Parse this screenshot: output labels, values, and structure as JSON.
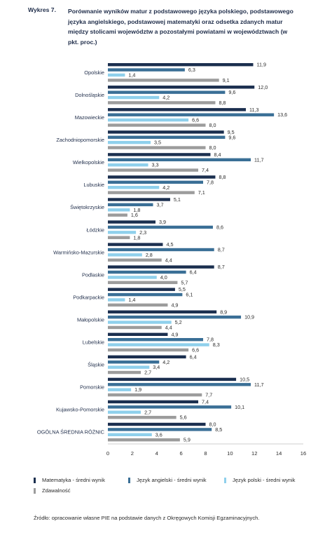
{
  "figure_label": "Wykres 7.",
  "title": "Porównanie wyników matur z podstawowego języka polskiego, podstawowego języka angielskiego, podstawowej matematyki oraz odsetka zdanych matur między stolicami województw a pozostałymi powiatami w województwach (w pkt. proc.)",
  "source": "Źródło: opracowanie własne PIE na podstawie danych z Okręgowych Komisji Egzaminacyjnych.",
  "colors": {
    "matematyka": "#1b2f4f",
    "angielski": "#3a6f96",
    "polski": "#8fd0ec",
    "zdawalnosc": "#9c9c9c"
  },
  "chart_data": {
    "type": "bar",
    "orientation": "horizontal",
    "categories": [
      "Opolskie",
      "Dolnośląskie",
      "Mazowieckie",
      "Zachodniopomorskie",
      "Wielkopolskie",
      "Lubuskie",
      "Świętokrzyskie",
      "Łódzkie",
      "Warmińsko-Mazurskie",
      "Podlaskie",
      "Podkarpackie",
      "Małopolskie",
      "Lubelskie",
      "Śląskie",
      "Pomorskie",
      "Kujawsko-Pomorskie",
      "OGÓLNA ŚREDNIA RÓŻNIC"
    ],
    "series": [
      {
        "name": "Matematyka - średni wynik",
        "color_key": "matematyka",
        "values": [
          11.9,
          12.0,
          11.3,
          9.5,
          8.4,
          8.8,
          5.1,
          3.9,
          4.5,
          8.7,
          5.5,
          8.9,
          4.9,
          6.4,
          10.5,
          7.4,
          8.0
        ]
      },
      {
        "name": "Język angielski - średni wynik",
        "color_key": "angielski",
        "values": [
          6.3,
          9.6,
          13.6,
          9.6,
          11.7,
          7.8,
          3.7,
          8.6,
          8.7,
          6.4,
          6.1,
          10.9,
          7.8,
          4.2,
          11.7,
          10.1,
          8.5
        ]
      },
      {
        "name": "Język polski - średni wynik",
        "color_key": "polski",
        "values": [
          1.4,
          4.2,
          6.6,
          3.5,
          3.3,
          4.2,
          1.8,
          2.3,
          2.8,
          4.0,
          1.4,
          5.2,
          8.3,
          3.4,
          1.9,
          2.7,
          3.6
        ]
      },
      {
        "name": "Zdawalność",
        "color_key": "zdawalnosc",
        "values": [
          9.1,
          8.8,
          8.0,
          8.0,
          7.4,
          7.1,
          1.6,
          1.8,
          4.4,
          5.7,
          4.9,
          4.4,
          6.6,
          2.7,
          7.7,
          5.6,
          5.9
        ]
      }
    ],
    "value_labels": [
      [
        "11,9",
        "12,0",
        "11,3",
        "9,5",
        "8,4",
        "8,8",
        "5,1",
        "3,9",
        "4,5",
        "8,7",
        "5,5",
        "8,9",
        "4,9",
        "6,4",
        "10,5",
        "7,4",
        "8,0"
      ],
      [
        "6,3",
        "9,6",
        "13,6",
        "9,6",
        "11,7",
        "7,8",
        "3,7",
        "8,6",
        "8,7",
        "6,4",
        "6,1",
        "10,9",
        "7,8",
        "4,2",
        "11,7",
        "10,1",
        "8,5"
      ],
      [
        "1,4",
        "4,2",
        "6,6",
        "3,5",
        "3,3",
        "4,2",
        "1,8",
        "2,3",
        "2,8",
        "4,0",
        "1,4",
        "5,2",
        "8,3",
        "3,4",
        "1,9",
        "2,7",
        "3,6"
      ],
      [
        "9,1",
        "8,8",
        "8,0",
        "8,0",
        "7,4",
        "7,1",
        "1,6",
        "1,8",
        "4,4",
        "5,7",
        "4,9",
        "4,4",
        "6,6",
        "2,7",
        "7,7",
        "5,6",
        "5,9"
      ]
    ],
    "xlim": [
      0,
      16
    ],
    "xticks": [
      "0",
      "2",
      "4",
      "6",
      "8",
      "10",
      "12",
      "14",
      "16"
    ],
    "grid": false,
    "legend_position": "bottom"
  }
}
